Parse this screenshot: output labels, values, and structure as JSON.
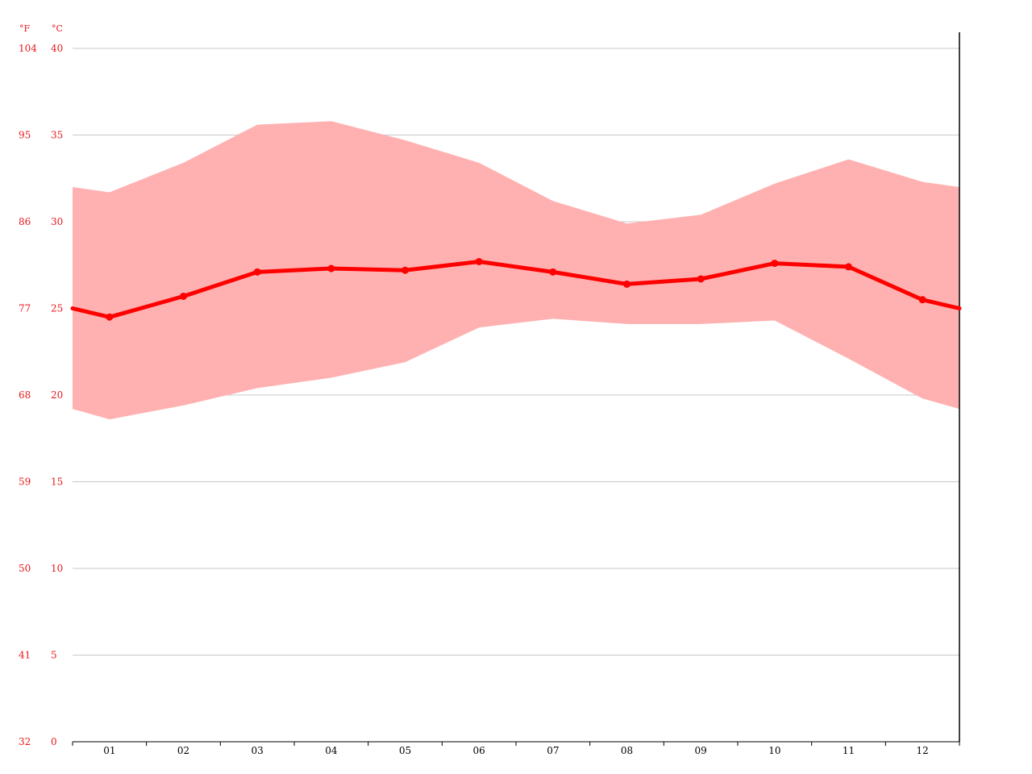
{
  "colors": {
    "line": "#ff0000",
    "range_fill": "#ffb1b1",
    "grid": "#c8c8c8",
    "axis": "#000000",
    "label_red": "#e8171b",
    "label_black": "#000000"
  },
  "chart_data": {
    "type": "line",
    "title": "",
    "xlabel": "",
    "ylabel": "",
    "units": {
      "fahrenheit": "°F",
      "celsius": "°C"
    },
    "categories": [
      "01",
      "02",
      "03",
      "04",
      "05",
      "06",
      "07",
      "08",
      "09",
      "10",
      "11",
      "12"
    ],
    "y_ticks_c": [
      "0",
      "5",
      "10",
      "15",
      "20",
      "25",
      "30",
      "35",
      "40"
    ],
    "y_ticks_f": [
      "32",
      "41",
      "50",
      "59",
      "68",
      "77",
      "86",
      "95",
      "104"
    ],
    "ylim": [
      0,
      40
    ],
    "grid": true,
    "series": [
      {
        "values": [
          24.5,
          25.7,
          27.1,
          27.3,
          27.2,
          27.7,
          27.1,
          26.4,
          26.7,
          27.6,
          27.4,
          25.5
        ]
      }
    ],
    "range": {
      "max": [
        31.7,
        33.4,
        35.6,
        35.8,
        34.7,
        33.4,
        31.2,
        29.9,
        30.4,
        32.2,
        33.6,
        32.3
      ],
      "min": [
        18.6,
        19.4,
        20.4,
        21.0,
        21.9,
        23.9,
        24.4,
        24.1,
        24.1,
        24.3,
        22.1,
        19.8
      ]
    },
    "edge_values": {
      "mean": 25.0,
      "max": 32.0,
      "min": 19.2
    }
  }
}
